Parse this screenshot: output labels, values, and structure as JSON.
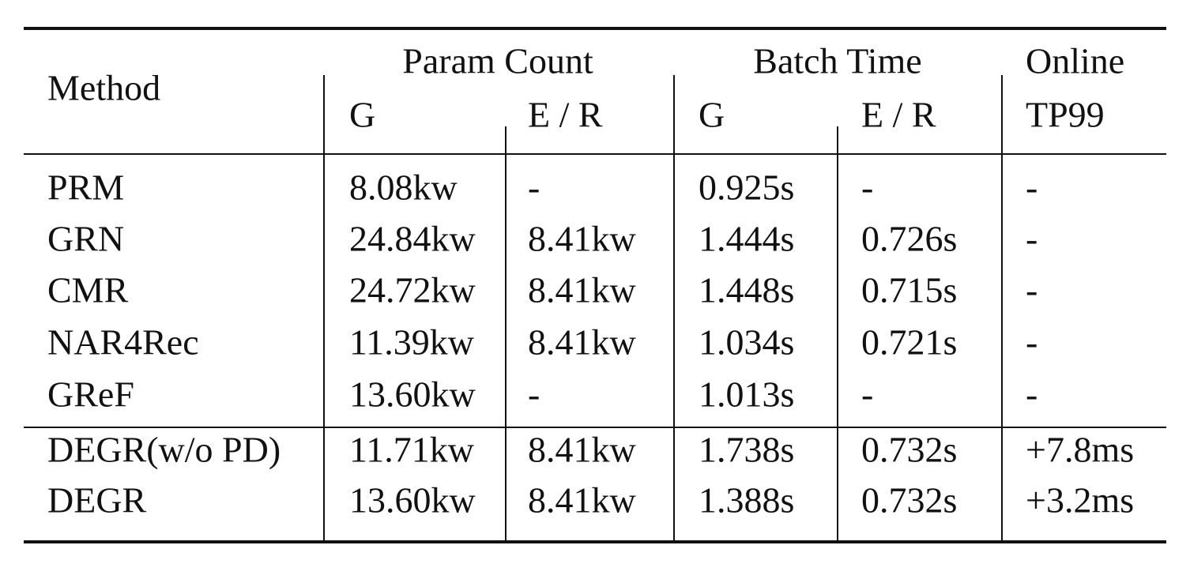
{
  "table": {
    "method_header": "Method",
    "groups": [
      "Param Count",
      "Batch Time",
      "Online"
    ],
    "subheaders": [
      "G",
      "E / R",
      "G",
      "E / R",
      "TP99"
    ],
    "rows": [
      [
        "PRM",
        "8.08kw",
        "-",
        "0.925s",
        "-",
        "-"
      ],
      [
        "GRN",
        "24.84kw",
        "8.41kw",
        "1.444s",
        "0.726s",
        "-"
      ],
      [
        "CMR",
        "24.72kw",
        "8.41kw",
        "1.448s",
        "0.715s",
        "-"
      ],
      [
        "NAR4Rec",
        "11.39kw",
        "8.41kw",
        "1.034s",
        "0.721s",
        "-"
      ],
      [
        "GReF",
        "13.60kw",
        "-",
        "1.013s",
        "-",
        "-"
      ],
      [
        "DEGR(w/o PD)",
        "11.71kw",
        "8.41kw",
        "1.738s",
        "0.732s",
        "+7.8ms"
      ],
      [
        "DEGR",
        "13.60kw",
        "8.41kw",
        "1.388s",
        "0.732s",
        "+3.2ms"
      ]
    ]
  }
}
